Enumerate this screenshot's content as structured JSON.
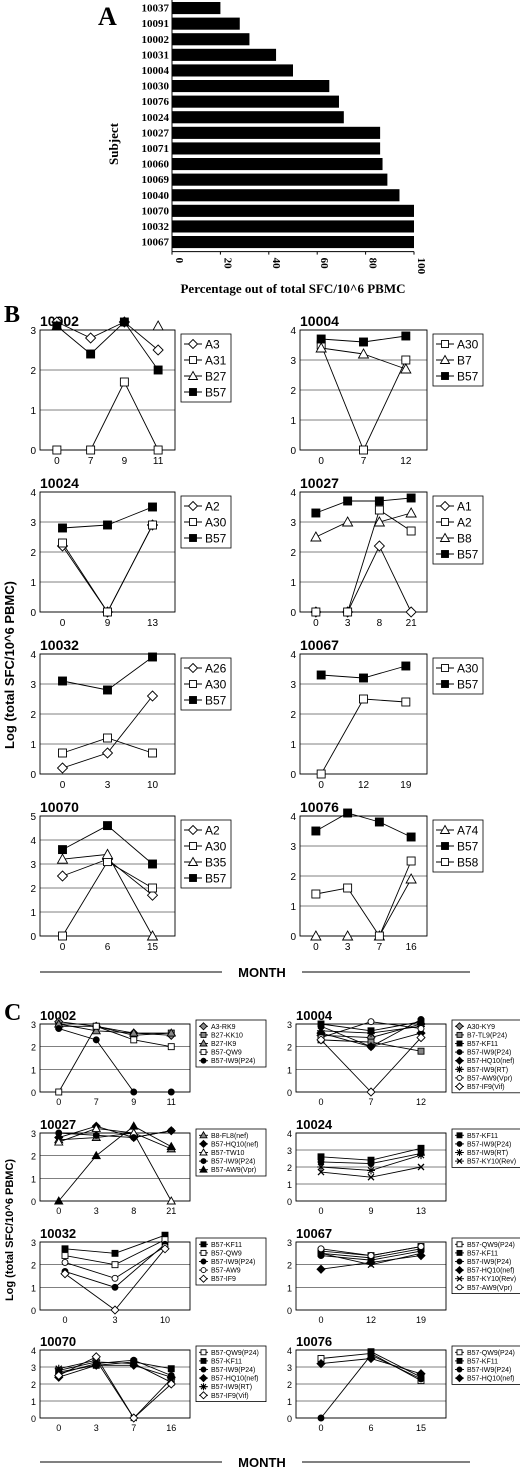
{
  "panel_labels": {
    "a": "A",
    "b": "B",
    "c": "C"
  },
  "shared": {
    "ylabel": "Log (total SFC/10^6 PBMC)",
    "xlabel": "MONTH"
  },
  "chart_data": [
    {
      "id": "A",
      "type": "bar",
      "orientation": "horizontal",
      "ylabel": "Subject",
      "xlabel": "Percentage out of total SFC/10^6 PBMC",
      "categories": [
        "10037",
        "10091",
        "10002",
        "10031",
        "10004",
        "10030",
        "10076",
        "10024",
        "10027",
        "10071",
        "10060",
        "10069",
        "10040",
        "10070",
        "10032",
        "10067"
      ],
      "values": [
        20,
        28,
        32,
        43,
        50,
        65,
        69,
        71,
        86,
        86,
        87,
        89,
        94,
        100,
        100,
        100
      ],
      "xlim": [
        0,
        100
      ],
      "xticks": [
        "0",
        "20",
        "40",
        "60",
        "80",
        "100"
      ],
      "color": "#000000"
    },
    {
      "id": "B-10002",
      "panel": "B",
      "type": "line",
      "title": "10002",
      "x_ticks": [
        "0",
        "7",
        "9",
        "11"
      ],
      "ylim": [
        0,
        3
      ],
      "y_ticks": [
        "0",
        "1",
        "2",
        "3"
      ],
      "series": [
        {
          "name": "A3",
          "marker": "diamond-open",
          "values": [
            3.2,
            2.8,
            3.2,
            2.5
          ]
        },
        {
          "name": "A31",
          "marker": "square-open",
          "values": [
            0,
            0,
            1.7,
            0
          ]
        },
        {
          "name": "B27",
          "marker": "triangle-open",
          "values": [
            3.1,
            null,
            null,
            3.1
          ]
        },
        {
          "name": "B57",
          "marker": "square-filled",
          "values": [
            3.1,
            2.4,
            3.2,
            2.0
          ]
        }
      ]
    },
    {
      "id": "B-10004",
      "panel": "B",
      "type": "line",
      "title": "10004",
      "x_ticks": [
        "0",
        "7",
        "12"
      ],
      "ylim": [
        0,
        4
      ],
      "y_ticks": [
        "0",
        "1",
        "2",
        "3",
        "4"
      ],
      "series": [
        {
          "name": "A30",
          "marker": "square-open",
          "values": [
            3.5,
            0,
            3.0
          ]
        },
        {
          "name": "B7",
          "marker": "triangle-open",
          "values": [
            3.4,
            3.2,
            2.7
          ]
        },
        {
          "name": "B57",
          "marker": "square-filled",
          "values": [
            3.7,
            3.6,
            3.8
          ]
        }
      ]
    },
    {
      "id": "B-10024",
      "panel": "B",
      "type": "line",
      "title": "10024",
      "x_ticks": [
        "0",
        "9",
        "13"
      ],
      "ylim": [
        0,
        4
      ],
      "y_ticks": [
        "0",
        "1",
        "2",
        "3",
        "4"
      ],
      "series": [
        {
          "name": "A2",
          "marker": "diamond-open",
          "values": [
            2.2,
            0,
            2.9
          ]
        },
        {
          "name": "A30",
          "marker": "square-open",
          "values": [
            2.3,
            0,
            2.9
          ]
        },
        {
          "name": "B57",
          "marker": "square-filled",
          "values": [
            2.8,
            2.9,
            3.5
          ]
        }
      ]
    },
    {
      "id": "B-10027",
      "panel": "B",
      "type": "line",
      "title": "10027",
      "x_ticks": [
        "0",
        "3",
        "8",
        "21"
      ],
      "ylim": [
        0,
        4
      ],
      "y_ticks": [
        "0",
        "1",
        "2",
        "3",
        "4"
      ],
      "series": [
        {
          "name": "A1",
          "marker": "diamond-open",
          "values": [
            0,
            0,
            2.2,
            0
          ]
        },
        {
          "name": "A2",
          "marker": "square-open",
          "values": [
            0,
            0,
            3.4,
            2.7
          ]
        },
        {
          "name": "B8",
          "marker": "triangle-open",
          "values": [
            2.5,
            3.0,
            3.0,
            3.3
          ]
        },
        {
          "name": "B57",
          "marker": "square-filled",
          "values": [
            3.3,
            3.7,
            3.7,
            3.8
          ]
        }
      ]
    },
    {
      "id": "B-10032",
      "panel": "B",
      "type": "line",
      "title": "10032",
      "x_ticks": [
        "0",
        "3",
        "10"
      ],
      "ylim": [
        0,
        4
      ],
      "y_ticks": [
        "0",
        "1",
        "2",
        "3",
        "4"
      ],
      "series": [
        {
          "name": "A26",
          "marker": "diamond-open",
          "values": [
            0.2,
            0.7,
            2.6
          ]
        },
        {
          "name": "A30",
          "marker": "square-open",
          "values": [
            0.7,
            1.2,
            0.7
          ]
        },
        {
          "name": "B57",
          "marker": "square-filled",
          "values": [
            3.1,
            2.8,
            3.9
          ]
        }
      ]
    },
    {
      "id": "B-10067",
      "panel": "B",
      "type": "line",
      "title": "10067",
      "x_ticks": [
        "0",
        "12",
        "19"
      ],
      "ylim": [
        0,
        4
      ],
      "y_ticks": [
        "0",
        "1",
        "2",
        "3",
        "4"
      ],
      "series": [
        {
          "name": "A30",
          "marker": "square-open",
          "values": [
            0,
            2.5,
            2.4
          ]
        },
        {
          "name": "B57",
          "marker": "square-filled",
          "values": [
            3.3,
            3.2,
            3.6
          ]
        }
      ]
    },
    {
      "id": "B-10070",
      "panel": "B",
      "type": "line",
      "title": "10070",
      "x_ticks": [
        "0",
        "6",
        "15"
      ],
      "ylim": [
        0,
        5
      ],
      "y_ticks": [
        "0",
        "1",
        "2",
        "3",
        "4",
        "5"
      ],
      "series": [
        {
          "name": "A2",
          "marker": "diamond-open",
          "values": [
            2.5,
            3.2,
            1.7
          ]
        },
        {
          "name": "A30",
          "marker": "square-open",
          "values": [
            0,
            3.1,
            2.0
          ]
        },
        {
          "name": "B35",
          "marker": "triangle-open",
          "values": [
            3.2,
            3.4,
            0
          ]
        },
        {
          "name": "B57",
          "marker": "square-filled",
          "values": [
            3.6,
            4.6,
            3.0
          ]
        }
      ]
    },
    {
      "id": "B-10076",
      "panel": "B",
      "type": "line",
      "title": "10076",
      "x_ticks": [
        "0",
        "3",
        "7",
        "16"
      ],
      "ylim": [
        0,
        4
      ],
      "y_ticks": [
        "0",
        "1",
        "2",
        "3",
        "4"
      ],
      "series": [
        {
          "name": "A74",
          "marker": "triangle-open",
          "values": [
            0,
            0,
            0,
            1.9
          ]
        },
        {
          "name": "B57",
          "marker": "square-filled",
          "values": [
            3.5,
            4.1,
            3.8,
            3.3
          ]
        },
        {
          "name": "B58",
          "marker": "square-open",
          "values": [
            1.4,
            1.6,
            0,
            2.5
          ]
        }
      ]
    },
    {
      "id": "C-10002",
      "panel": "C",
      "type": "line",
      "title": "10002",
      "x_ticks": [
        "0",
        "7",
        "9",
        "11"
      ],
      "ylim": [
        0,
        3
      ],
      "y_ticks": [
        "0",
        "1",
        "2",
        "3"
      ],
      "series": [
        {
          "name": "A3-RK9",
          "marker": "diamond-gray",
          "values": [
            3.1,
            2.9,
            2.6,
            2.5
          ]
        },
        {
          "name": "B27-KK10",
          "marker": "square-gray",
          "values": [
            2.9,
            2.9,
            2.5,
            2.6
          ]
        },
        {
          "name": "B27-IK9",
          "marker": "triangle-gray",
          "values": [
            3.0,
            2.7,
            2.6,
            2.6
          ]
        },
        {
          "name": "B57-QW9",
          "marker": "square-open",
          "values": [
            0,
            2.9,
            2.3,
            2.0
          ]
        },
        {
          "name": "B57-IW9(P24)",
          "marker": "circle-filled",
          "values": [
            2.8,
            2.3,
            0,
            0
          ]
        }
      ]
    },
    {
      "id": "C-10004",
      "panel": "C",
      "type": "line",
      "title": "10004",
      "x_ticks": [
        "0",
        "7",
        "12"
      ],
      "ylim": [
        0,
        3
      ],
      "y_ticks": [
        "0",
        "1",
        "2",
        "3"
      ],
      "series": [
        {
          "name": "A30-KY9",
          "marker": "diamond-gray",
          "values": [
            2.5,
            2.4,
            3.0
          ]
        },
        {
          "name": "B7-TL9(P24)",
          "marker": "square-gray",
          "values": [
            2.3,
            2.2,
            1.8
          ]
        },
        {
          "name": "B57-KF11",
          "marker": "square-filled",
          "values": [
            3.0,
            2.7,
            3.1
          ]
        },
        {
          "name": "B57-IW9(P24)",
          "marker": "circle-filled",
          "values": [
            2.9,
            2.0,
            3.2
          ]
        },
        {
          "name": "B57-HQ10(nef)",
          "marker": "diamond-filled",
          "values": [
            2.6,
            2.0,
            2.6
          ]
        },
        {
          "name": "B57-IW9(RT)",
          "marker": "star",
          "values": [
            2.7,
            2.6,
            2.9
          ]
        },
        {
          "name": "B57-AW9(Vpr)",
          "marker": "circle-open",
          "values": [
            2.4,
            3.1,
            2.8
          ]
        },
        {
          "name": "B57-IF9(Vif)",
          "marker": "diamond-open",
          "values": [
            2.3,
            0,
            2.4
          ]
        }
      ]
    },
    {
      "id": "C-10027",
      "panel": "C",
      "type": "line",
      "title": "10027",
      "x_ticks": [
        "0",
        "3",
        "8",
        "21"
      ],
      "ylim": [
        0,
        3
      ],
      "y_ticks": [
        "0",
        "1",
        "2",
        "3"
      ],
      "series": [
        {
          "name": "B8-FL8(nef)",
          "marker": "triangle-gray",
          "values": [
            2.7,
            2.8,
            3.0,
            2.3
          ]
        },
        {
          "name": "B57-HQ10(nef)",
          "marker": "diamond-filled",
          "values": [
            2.8,
            3.3,
            2.8,
            3.1
          ]
        },
        {
          "name": "B57-TW10",
          "marker": "triangle-open",
          "values": [
            2.6,
            3.2,
            3.0,
            0
          ]
        },
        {
          "name": "B57-IW9(P24)",
          "marker": "circle-filled",
          "values": [
            3.0,
            2.9,
            2.8,
            3.1
          ]
        },
        {
          "name": "B57-AW9(Vpr)",
          "marker": "triangle-filled",
          "values": [
            0,
            2.0,
            3.3,
            2.4
          ]
        }
      ]
    },
    {
      "id": "C-10024",
      "panel": "C",
      "type": "line",
      "title": "10024",
      "x_ticks": [
        "0",
        "9",
        "13"
      ],
      "ylim": [
        0,
        4
      ],
      "y_ticks": [
        "0",
        "1",
        "2",
        "3",
        "4"
      ],
      "series": [
        {
          "name": "B57-KF11",
          "marker": "square-filled",
          "values": [
            2.6,
            2.4,
            3.1
          ]
        },
        {
          "name": "B57-IW9(P24)",
          "marker": "circle-filled",
          "values": [
            2.3,
            2.2,
            2.8
          ]
        },
        {
          "name": "B57-IW9(RT)",
          "marker": "star",
          "values": [
            2.0,
            1.8,
            2.7
          ]
        },
        {
          "name": "B57-KY10(Rev)",
          "marker": "x",
          "values": [
            1.7,
            1.4,
            2.0
          ]
        }
      ]
    },
    {
      "id": "C-10032",
      "panel": "C",
      "type": "line",
      "title": "10032",
      "x_ticks": [
        "0",
        "3",
        "10"
      ],
      "ylim": [
        0,
        3
      ],
      "y_ticks": [
        "0",
        "1",
        "2",
        "3"
      ],
      "series": [
        {
          "name": "B57-KF11",
          "marker": "square-filled",
          "values": [
            2.7,
            2.5,
            3.3
          ]
        },
        {
          "name": "B57-QW9",
          "marker": "square-open",
          "values": [
            2.4,
            2.0,
            3.1
          ]
        },
        {
          "name": "B57-IW9(P24)",
          "marker": "circle-filled",
          "values": [
            1.7,
            1.0,
            2.9
          ]
        },
        {
          "name": "B57-AW9",
          "marker": "circle-open",
          "values": [
            2.1,
            1.4,
            2.8
          ]
        },
        {
          "name": "B57-IF9",
          "marker": "diamond-open",
          "values": [
            1.6,
            0,
            2.7
          ]
        }
      ]
    },
    {
      "id": "C-10067",
      "panel": "C",
      "type": "line",
      "title": "10067",
      "x_ticks": [
        "0",
        "12",
        "19"
      ],
      "ylim": [
        0,
        3
      ],
      "y_ticks": [
        "0",
        "1",
        "2",
        "3"
      ],
      "series": [
        {
          "name": "B57-QW9(P24)",
          "marker": "square-open",
          "values": [
            2.6,
            2.4,
            2.8
          ]
        },
        {
          "name": "B57-KF11",
          "marker": "square-filled",
          "values": [
            2.5,
            2.3,
            2.7
          ]
        },
        {
          "name": "B57-IW9(P24)",
          "marker": "circle-filled",
          "values": [
            2.4,
            2.2,
            2.6
          ]
        },
        {
          "name": "B57-HQ10(nef)",
          "marker": "diamond-filled",
          "values": [
            1.8,
            2.1,
            2.4
          ]
        },
        {
          "name": "B57-KY10(Rev)",
          "marker": "x",
          "values": [
            2.5,
            2.0,
            2.5
          ]
        },
        {
          "name": "B57-AW9(Vpr)",
          "marker": "circle-open",
          "values": [
            2.7,
            2.4,
            2.8
          ]
        }
      ]
    },
    {
      "id": "C-10070",
      "panel": "C",
      "type": "line",
      "title": "10070",
      "x_ticks": [
        "0",
        "3",
        "7",
        "16"
      ],
      "ylim": [
        0,
        4
      ],
      "y_ticks": [
        "0",
        "1",
        "2",
        "3",
        "4"
      ],
      "series": [
        {
          "name": "B57-QW9(P24)",
          "marker": "square-open",
          "values": [
            2.8,
            3.3,
            3.2,
            2.1
          ]
        },
        {
          "name": "B57-KF11",
          "marker": "square-filled",
          "values": [
            2.7,
            3.1,
            3.3,
            2.9
          ]
        },
        {
          "name": "B57-IW9(P24)",
          "marker": "circle-filled",
          "values": [
            2.6,
            3.2,
            3.4,
            2.5
          ]
        },
        {
          "name": "B57-HQ10(nef)",
          "marker": "diamond-filled",
          "values": [
            2.4,
            3.1,
            3.1,
            2.4
          ]
        },
        {
          "name": "B57-IW9(RT)",
          "marker": "star",
          "values": [
            2.9,
            3.4,
            0,
            2.3
          ]
        },
        {
          "name": "B57-IF9(Vif)",
          "marker": "diamond-open",
          "values": [
            2.5,
            3.6,
            0,
            2.0
          ]
        }
      ]
    },
    {
      "id": "C-10076",
      "panel": "C",
      "type": "line",
      "title": "10076",
      "x_ticks": [
        "0",
        "6",
        "15"
      ],
      "ylim": [
        0,
        4
      ],
      "y_ticks": [
        "0",
        "1",
        "2",
        "3",
        "4"
      ],
      "series": [
        {
          "name": "B57-QW9(P24)",
          "marker": "square-open",
          "values": [
            3.5,
            3.8,
            2.2
          ]
        },
        {
          "name": "B57-KF11",
          "marker": "square-filled",
          "values": [
            null,
            3.9,
            2.4
          ]
        },
        {
          "name": "B57-IW9(P24)",
          "marker": "circle-filled",
          "values": [
            0,
            3.7,
            2.3
          ]
        },
        {
          "name": "B57-HQ10(nef)",
          "marker": "diamond-filled",
          "values": [
            3.2,
            3.5,
            2.6
          ]
        }
      ]
    }
  ]
}
